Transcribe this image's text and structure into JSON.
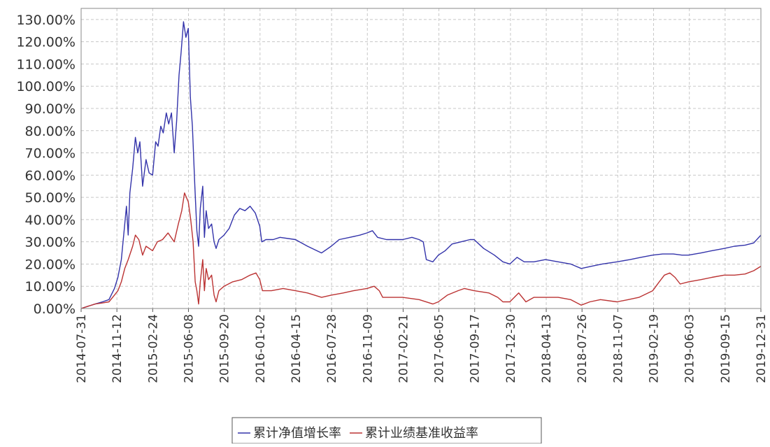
{
  "chart_data": {
    "type": "line",
    "title": "",
    "xlabel": "",
    "ylabel": "",
    "ylim": [
      0,
      135
    ],
    "grid": true,
    "legend_position": "bottom-center",
    "y_ticks": [
      0,
      10,
      20,
      30,
      40,
      50,
      60,
      70,
      80,
      90,
      100,
      110,
      120,
      130
    ],
    "y_tick_labels": [
      "0.00%",
      "10.00%",
      "20.00%",
      "30.00%",
      "40.00%",
      "50.00%",
      "60.00%",
      "70.00%",
      "80.00%",
      "90.00%",
      "100.00%",
      "110.00%",
      "120.00%",
      "130.00%"
    ],
    "x_tick_labels": [
      "2014-07-31",
      "2014-11-12",
      "2015-02-24",
      "2015-06-08",
      "2015-09-20",
      "2016-01-02",
      "2016-04-15",
      "2016-07-28",
      "2016-11-09",
      "2017-02-21",
      "2017-06-05",
      "2017-09-17",
      "2017-12-30",
      "2018-04-13",
      "2018-07-26",
      "2018-11-07",
      "2019-02-19",
      "2019-06-03",
      "2019-09-15",
      "2019-12-31"
    ],
    "x_range": [
      "2014-07-31",
      "2019-12-31"
    ],
    "series": [
      {
        "name": "累计净值增长率",
        "color": "#3333aa",
        "points": [
          [
            "2014-07-31",
            0
          ],
          [
            "2014-08-20",
            1
          ],
          [
            "2014-09-10",
            2
          ],
          [
            "2014-10-01",
            3
          ],
          [
            "2014-10-20",
            4
          ],
          [
            "2014-11-05",
            9
          ],
          [
            "2014-11-15",
            14
          ],
          [
            "2014-11-25",
            22
          ],
          [
            "2014-12-05",
            38
          ],
          [
            "2014-12-10",
            46
          ],
          [
            "2014-12-15",
            33
          ],
          [
            "2014-12-20",
            52
          ],
          [
            "2014-12-28",
            63
          ],
          [
            "2015-01-05",
            77
          ],
          [
            "2015-01-12",
            70
          ],
          [
            "2015-01-18",
            75
          ],
          [
            "2015-01-26",
            55
          ],
          [
            "2015-02-05",
            67
          ],
          [
            "2015-02-14",
            61
          ],
          [
            "2015-02-24",
            60
          ],
          [
            "2015-03-05",
            75
          ],
          [
            "2015-03-12",
            73
          ],
          [
            "2015-03-20",
            82
          ],
          [
            "2015-03-27",
            79
          ],
          [
            "2015-04-05",
            88
          ],
          [
            "2015-04-12",
            83
          ],
          [
            "2015-04-20",
            88
          ],
          [
            "2015-04-28",
            70
          ],
          [
            "2015-05-05",
            84
          ],
          [
            "2015-05-12",
            105
          ],
          [
            "2015-05-18",
            115
          ],
          [
            "2015-05-25",
            129
          ],
          [
            "2015-06-01",
            122
          ],
          [
            "2015-06-08",
            126
          ],
          [
            "2015-06-14",
            95
          ],
          [
            "2015-06-20",
            82
          ],
          [
            "2015-06-27",
            55
          ],
          [
            "2015-07-03",
            35
          ],
          [
            "2015-07-08",
            28
          ],
          [
            "2015-07-13",
            45
          ],
          [
            "2015-07-20",
            55
          ],
          [
            "2015-07-25",
            32
          ],
          [
            "2015-07-30",
            44
          ],
          [
            "2015-08-06",
            36
          ],
          [
            "2015-08-15",
            38
          ],
          [
            "2015-08-22",
            30
          ],
          [
            "2015-08-28",
            27
          ],
          [
            "2015-09-05",
            31
          ],
          [
            "2015-09-20",
            33
          ],
          [
            "2015-10-05",
            36
          ],
          [
            "2015-10-20",
            42
          ],
          [
            "2015-11-05",
            45
          ],
          [
            "2015-11-20",
            44
          ],
          [
            "2015-12-05",
            46
          ],
          [
            "2015-12-20",
            43
          ],
          [
            "2016-01-02",
            37
          ],
          [
            "2016-01-08",
            30
          ],
          [
            "2016-01-20",
            31
          ],
          [
            "2016-02-10",
            31
          ],
          [
            "2016-03-01",
            32
          ],
          [
            "2016-04-15",
            31
          ],
          [
            "2016-05-20",
            28
          ],
          [
            "2016-06-30",
            25
          ],
          [
            "2016-07-28",
            28
          ],
          [
            "2016-08-20",
            31
          ],
          [
            "2016-09-20",
            32
          ],
          [
            "2016-10-20",
            33
          ],
          [
            "2016-11-09",
            34
          ],
          [
            "2016-11-25",
            35
          ],
          [
            "2016-12-10",
            32
          ],
          [
            "2017-01-05",
            31
          ],
          [
            "2017-02-21",
            31
          ],
          [
            "2017-03-20",
            32
          ],
          [
            "2017-04-10",
            31
          ],
          [
            "2017-04-22",
            30
          ],
          [
            "2017-05-01",
            22
          ],
          [
            "2017-05-20",
            21
          ],
          [
            "2017-06-05",
            24
          ],
          [
            "2017-06-25",
            26
          ],
          [
            "2017-07-15",
            29
          ],
          [
            "2017-08-10",
            30
          ],
          [
            "2017-09-05",
            31
          ],
          [
            "2017-09-17",
            31
          ],
          [
            "2017-10-15",
            27
          ],
          [
            "2017-11-15",
            24
          ],
          [
            "2017-12-10",
            21
          ],
          [
            "2017-12-30",
            20
          ],
          [
            "2018-01-20",
            23
          ],
          [
            "2018-02-10",
            21
          ],
          [
            "2018-03-10",
            21
          ],
          [
            "2018-04-13",
            22
          ],
          [
            "2018-05-20",
            21
          ],
          [
            "2018-06-25",
            20
          ],
          [
            "2018-07-26",
            18
          ],
          [
            "2018-08-25",
            19
          ],
          [
            "2018-09-25",
            20
          ],
          [
            "2018-11-07",
            21
          ],
          [
            "2018-12-15",
            22
          ],
          [
            "2019-01-15",
            23
          ],
          [
            "2019-02-19",
            24
          ],
          [
            "2019-03-20",
            24.5
          ],
          [
            "2019-04-20",
            24.5
          ],
          [
            "2019-05-15",
            24
          ],
          [
            "2019-06-03",
            24
          ],
          [
            "2019-07-10",
            25
          ],
          [
            "2019-08-10",
            26
          ],
          [
            "2019-09-15",
            27
          ],
          [
            "2019-10-15",
            28
          ],
          [
            "2019-11-15",
            28.5
          ],
          [
            "2019-12-10",
            29.5
          ],
          [
            "2019-12-31",
            33
          ]
        ]
      },
      {
        "name": "累计业绩基准收益率",
        "color": "#bb3333",
        "points": [
          [
            "2014-07-31",
            0
          ],
          [
            "2014-08-20",
            1
          ],
          [
            "2014-09-10",
            2
          ],
          [
            "2014-10-01",
            2.5
          ],
          [
            "2014-10-20",
            3
          ],
          [
            "2014-11-05",
            6
          ],
          [
            "2014-11-15",
            8
          ],
          [
            "2014-11-25",
            12
          ],
          [
            "2014-12-05",
            18
          ],
          [
            "2014-12-15",
            22
          ],
          [
            "2014-12-28",
            28
          ],
          [
            "2015-01-05",
            33
          ],
          [
            "2015-01-15",
            31
          ],
          [
            "2015-01-26",
            24
          ],
          [
            "2015-02-05",
            28
          ],
          [
            "2015-02-24",
            26
          ],
          [
            "2015-03-10",
            30
          ],
          [
            "2015-03-25",
            31
          ],
          [
            "2015-04-10",
            34
          ],
          [
            "2015-04-28",
            30
          ],
          [
            "2015-05-10",
            38
          ],
          [
            "2015-05-20",
            44
          ],
          [
            "2015-05-28",
            52
          ],
          [
            "2015-06-08",
            48
          ],
          [
            "2015-06-15",
            40
          ],
          [
            "2015-06-22",
            30
          ],
          [
            "2015-06-28",
            12
          ],
          [
            "2015-07-03",
            8
          ],
          [
            "2015-07-08",
            2
          ],
          [
            "2015-07-13",
            12
          ],
          [
            "2015-07-20",
            22
          ],
          [
            "2015-07-25",
            8
          ],
          [
            "2015-07-30",
            18
          ],
          [
            "2015-08-06",
            13
          ],
          [
            "2015-08-15",
            15
          ],
          [
            "2015-08-22",
            6
          ],
          [
            "2015-08-28",
            3
          ],
          [
            "2015-09-05",
            8
          ],
          [
            "2015-09-20",
            10
          ],
          [
            "2015-10-15",
            12
          ],
          [
            "2015-11-10",
            13
          ],
          [
            "2015-12-05",
            15
          ],
          [
            "2015-12-22",
            16
          ],
          [
            "2016-01-02",
            13
          ],
          [
            "2016-01-10",
            8
          ],
          [
            "2016-02-05",
            8
          ],
          [
            "2016-03-10",
            9
          ],
          [
            "2016-04-15",
            8
          ],
          [
            "2016-05-20",
            7
          ],
          [
            "2016-06-30",
            5
          ],
          [
            "2016-07-28",
            6
          ],
          [
            "2016-09-01",
            7
          ],
          [
            "2016-10-01",
            8
          ],
          [
            "2016-11-09",
            9
          ],
          [
            "2016-11-30",
            10
          ],
          [
            "2016-12-15",
            8
          ],
          [
            "2016-12-25",
            5
          ],
          [
            "2017-02-21",
            5
          ],
          [
            "2017-04-10",
            4
          ],
          [
            "2017-05-20",
            2
          ],
          [
            "2017-06-05",
            3
          ],
          [
            "2017-07-01",
            6
          ],
          [
            "2017-08-01",
            8
          ],
          [
            "2017-08-20",
            9
          ],
          [
            "2017-09-17",
            8
          ],
          [
            "2017-10-30",
            7
          ],
          [
            "2017-11-25",
            5
          ],
          [
            "2017-12-10",
            3
          ],
          [
            "2017-12-30",
            3
          ],
          [
            "2018-01-25",
            7
          ],
          [
            "2018-02-15",
            3
          ],
          [
            "2018-03-10",
            5
          ],
          [
            "2018-04-13",
            5
          ],
          [
            "2018-05-20",
            5
          ],
          [
            "2018-06-25",
            4
          ],
          [
            "2018-07-26",
            1.5
          ],
          [
            "2018-08-20",
            3
          ],
          [
            "2018-09-20",
            4
          ],
          [
            "2018-11-07",
            3
          ],
          [
            "2018-12-10",
            4
          ],
          [
            "2019-01-10",
            5
          ],
          [
            "2019-02-19",
            8
          ],
          [
            "2019-03-10",
            12
          ],
          [
            "2019-03-25",
            15
          ],
          [
            "2019-04-10",
            16
          ],
          [
            "2019-04-25",
            14
          ],
          [
            "2019-05-10",
            11
          ],
          [
            "2019-06-03",
            12
          ],
          [
            "2019-07-10",
            13
          ],
          [
            "2019-08-10",
            14
          ],
          [
            "2019-09-15",
            15
          ],
          [
            "2019-10-15",
            15
          ],
          [
            "2019-11-15",
            15.5
          ],
          [
            "2019-12-10",
            17
          ],
          [
            "2019-12-31",
            19
          ]
        ]
      }
    ]
  }
}
